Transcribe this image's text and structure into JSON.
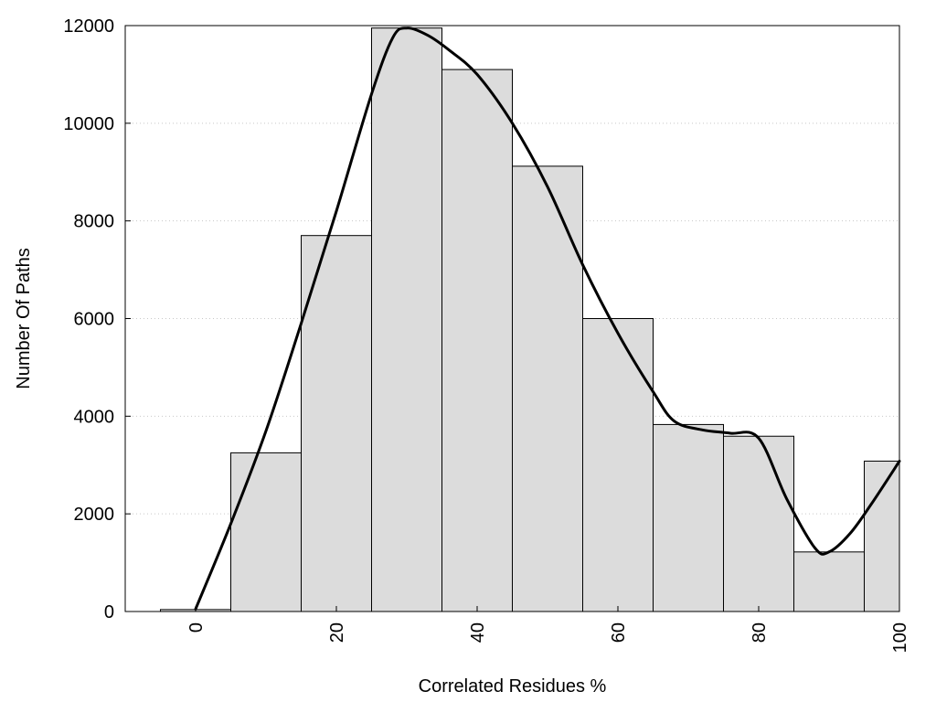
{
  "chart_data": {
    "type": "bar",
    "title": "",
    "xlabel": "Correlated Residues %",
    "ylabel": "Number Of Paths",
    "xlim": [
      -10,
      100
    ],
    "ylim": [
      0,
      12000
    ],
    "grid": true,
    "x_ticks": [
      "0",
      "20",
      "40",
      "60",
      "80",
      "100"
    ],
    "y_ticks": [
      "0",
      "2000",
      "4000",
      "6000",
      "8000",
      "10000",
      "12000"
    ],
    "bins": [
      {
        "start": -5,
        "end": 5,
        "value": 40
      },
      {
        "start": 5,
        "end": 15,
        "value": 3250
      },
      {
        "start": 15,
        "end": 25,
        "value": 7700
      },
      {
        "start": 25,
        "end": 35,
        "value": 11950
      },
      {
        "start": 35,
        "end": 45,
        "value": 11100
      },
      {
        "start": 45,
        "end": 55,
        "value": 9120
      },
      {
        "start": 55,
        "end": 65,
        "value": 6000
      },
      {
        "start": 65,
        "end": 75,
        "value": 3830
      },
      {
        "start": 75,
        "end": 85,
        "value": 3590
      },
      {
        "start": 85,
        "end": 95,
        "value": 1220
      },
      {
        "start": 95,
        "end": 100,
        "value": 3080
      }
    ],
    "curve": {
      "x": [
        0,
        5,
        10,
        15,
        20,
        25,
        28,
        30,
        33,
        36,
        40,
        45,
        50,
        55,
        60,
        65,
        68,
        72,
        76,
        80,
        84,
        88,
        90,
        93,
        96,
        100
      ],
      "y": [
        50,
        1800,
        3700,
        5900,
        8200,
        10600,
        11750,
        11950,
        11800,
        11500,
        11000,
        10000,
        8700,
        7100,
        5700,
        4500,
        3900,
        3720,
        3650,
        3550,
        2300,
        1300,
        1220,
        1600,
        2200,
        3080
      ]
    }
  }
}
